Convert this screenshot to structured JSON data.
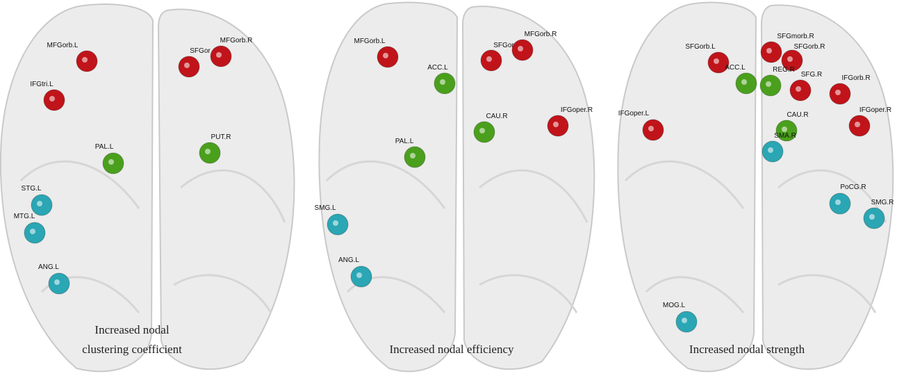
{
  "panels": [
    {
      "caption": [
        "Increased nodal",
        "clustering coefficient"
      ],
      "nodes": [
        {
          "label": "MFGorb.L",
          "color": "#c0141a"
        },
        {
          "label": "SFGor",
          "color": "#c0141a"
        },
        {
          "label": "MFGorb.R",
          "color": "#c0141a"
        },
        {
          "label": "IFGtri.L",
          "color": "#c0141a"
        },
        {
          "label": "PAL.L",
          "color": "#4aa01c"
        },
        {
          "label": "PUT.R",
          "color": "#4aa01c"
        },
        {
          "label": "STG.L",
          "color": "#2aa6b4"
        },
        {
          "label": "MTG.L",
          "color": "#2aa6b4"
        },
        {
          "label": "ANG.L",
          "color": "#2aa6b4"
        }
      ]
    },
    {
      "caption": [
        "Increased nodal efficiency"
      ],
      "nodes": [
        {
          "label": "MFGorb.L",
          "color": "#c0141a"
        },
        {
          "label": "SFGor",
          "color": "#c0141a"
        },
        {
          "label": "MFGorb.R",
          "color": "#c0141a"
        },
        {
          "label": "ACC.L",
          "color": "#4aa01c"
        },
        {
          "label": "CAU.R",
          "color": "#4aa01c"
        },
        {
          "label": "IFGoper.R",
          "color": "#c0141a"
        },
        {
          "label": "PAL.L",
          "color": "#4aa01c"
        },
        {
          "label": "SMG.L",
          "color": "#2aa6b4"
        },
        {
          "label": "ANG.L",
          "color": "#2aa6b4"
        }
      ]
    },
    {
      "caption": [
        "Increased nodal strength"
      ],
      "nodes": [
        {
          "label": "SFGorb.L",
          "color": "#c0141a"
        },
        {
          "label": "SFGmorb.R",
          "color": "#c0141a"
        },
        {
          "label": "SFGorb.R",
          "color": "#c0141a"
        },
        {
          "label": "ACC.L",
          "color": "#4aa01c"
        },
        {
          "label": "REG.R",
          "color": "#4aa01c"
        },
        {
          "label": "SFG.R",
          "color": "#c0141a"
        },
        {
          "label": "IFGorb.R",
          "color": "#c0141a"
        },
        {
          "label": "IFGoper.L",
          "color": "#c0141a"
        },
        {
          "label": "CAU.R",
          "color": "#4aa01c"
        },
        {
          "label": "IFGoper.R",
          "color": "#c0141a"
        },
        {
          "label": "SMA.R",
          "color": "#2aa6b4"
        },
        {
          "label": "PoCG.R",
          "color": "#2aa6b4"
        },
        {
          "label": "SMG.R",
          "color": "#2aa6b4"
        },
        {
          "label": "MOG.L",
          "color": "#2aa6b4"
        }
      ]
    }
  ]
}
